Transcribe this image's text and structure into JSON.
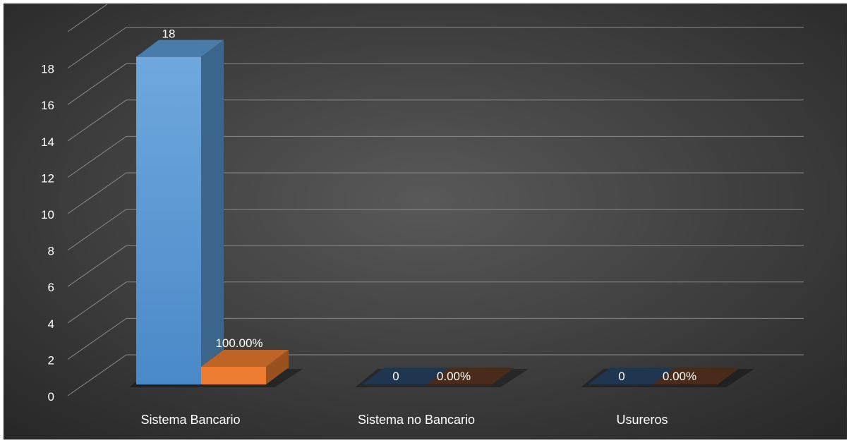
{
  "chart_data": {
    "type": "bar",
    "categories": [
      "Sistema Bancario",
      "Sistema no Bancario",
      "Usureros"
    ],
    "series": [
      {
        "values": [
          18,
          0,
          0
        ],
        "data_labels": [
          "18",
          "0",
          "0"
        ],
        "color": "#5b9bd5"
      },
      {
        "values": [
          1,
          0,
          0
        ],
        "data_labels": [
          "100.00%",
          "0.00%",
          "0.00%"
        ],
        "color": "#ed7d31"
      }
    ],
    "y_ticks": [
      "0",
      "2",
      "4",
      "6",
      "8",
      "10",
      "12",
      "14",
      "16",
      "18"
    ],
    "ylim": [
      0,
      18
    ],
    "grid": true,
    "three_d": true,
    "legend": "none",
    "colors": {
      "background_center": "#595959",
      "background_edge": "#262626",
      "gridline": "#8a8a8a",
      "text": "#ffffff"
    }
  }
}
